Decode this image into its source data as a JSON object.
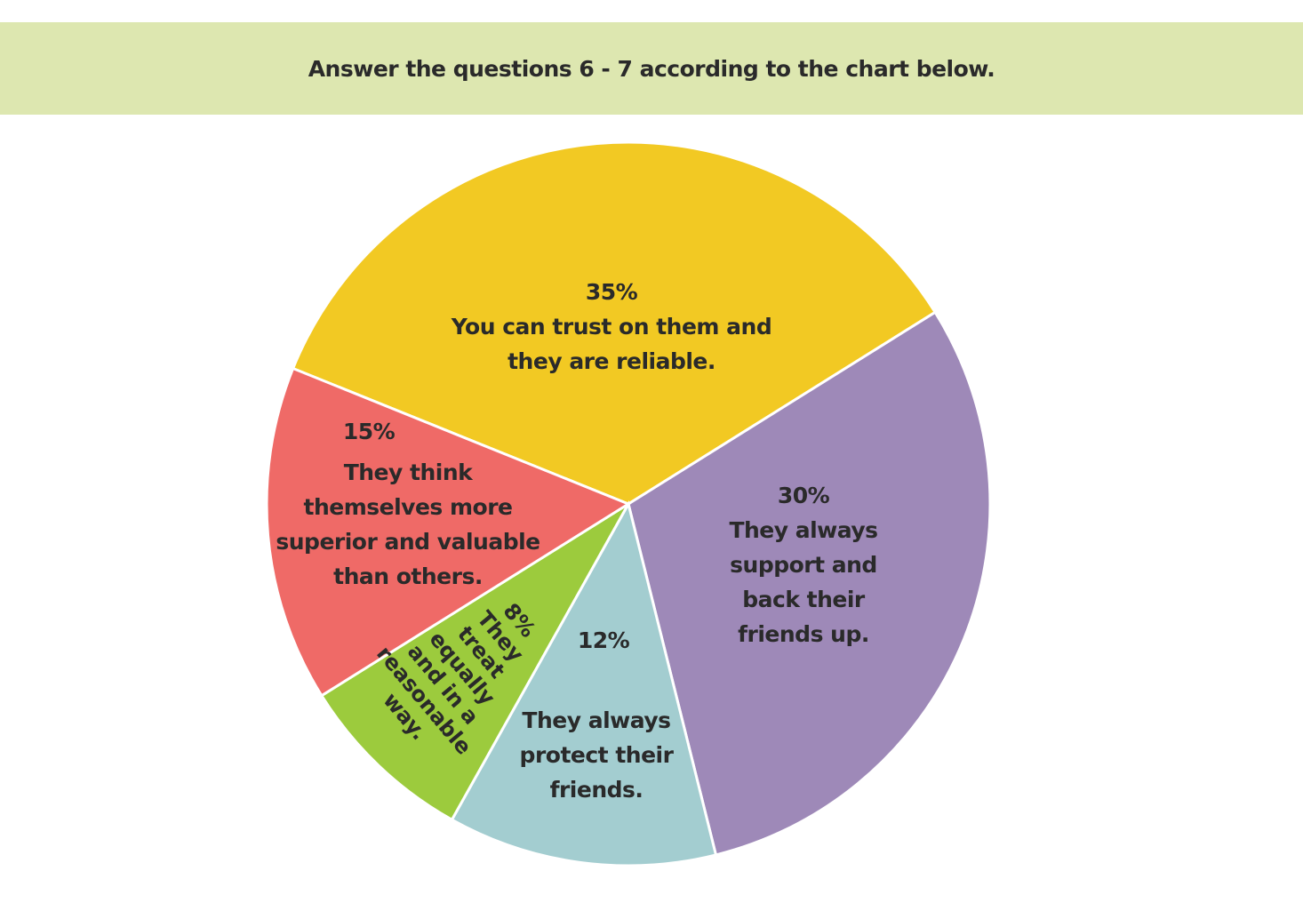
{
  "header": {
    "instruction": "Answer the questions 6 - 7 according to the chart below."
  },
  "chart_data": {
    "type": "pie",
    "title": "",
    "slices": [
      {
        "percent_label": "35%",
        "label_lines": [
          "You can trust on them and",
          "they are reliable."
        ],
        "value": 35,
        "color": "#f2c923"
      },
      {
        "percent_label": "30%",
        "label_lines": [
          "They always",
          "support and",
          "back their",
          "friends up."
        ],
        "value": 30,
        "color": "#9e89b8"
      },
      {
        "percent_label": "12%",
        "label_lines": [
          "They always",
          "protect their",
          "friends."
        ],
        "value": 12,
        "color": "#a3cdd0"
      },
      {
        "percent_label": "8%",
        "label_lines": [
          "They",
          "treat",
          "equally",
          "and in a",
          "reasonable",
          "way."
        ],
        "value": 8,
        "color": "#9ccb3d"
      },
      {
        "percent_label": "15%",
        "label_lines": [
          "They think",
          "themselves more",
          "superior and valuable",
          "than others."
        ],
        "value": 15,
        "color": "#ef6a67"
      }
    ],
    "start_angle_deg": -68,
    "direction": "clockwise",
    "legend": "none"
  }
}
